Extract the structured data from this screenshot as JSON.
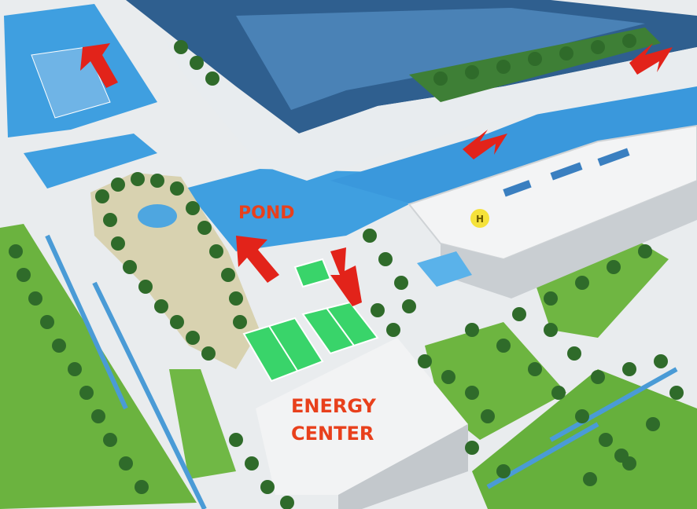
{
  "photo": {
    "subject": "architectural-site-model",
    "labels": {
      "pond": "POND",
      "energy_center_line1": "ENERGY",
      "energy_center_line2": "CENTER",
      "helipad": "H"
    },
    "colors": {
      "label": "#e8401c",
      "arrow": "#e2231a",
      "water": "#3f9fe0",
      "grass": "#5fae3a",
      "tree": "#2f6b2a",
      "court": "#39d46a",
      "building": "#eef1f3",
      "roof_glass": "#2f5f8f"
    },
    "arrows": [
      {
        "name": "arrow-top-left",
        "direction": "up-left"
      },
      {
        "name": "arrow-top-right",
        "direction": "down-left"
      },
      {
        "name": "arrow-center",
        "direction": "down-left"
      },
      {
        "name": "arrow-pond-left",
        "direction": "up-left"
      },
      {
        "name": "arrow-pond-right",
        "direction": "down-right"
      }
    ]
  }
}
